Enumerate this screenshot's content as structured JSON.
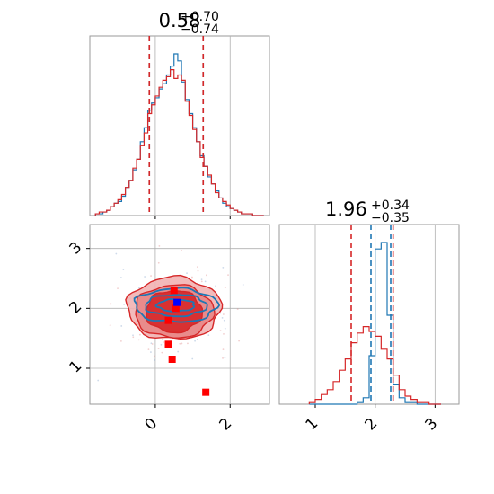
{
  "chart_data": {
    "type": "corner",
    "series": [
      {
        "name": "",
        "color": "#1f77b4"
      },
      {
        "name": "",
        "color": "#d62728"
      }
    ],
    "parameters": [
      {
        "title_value": "0.58",
        "title_plus": "+0.70",
        "title_minus": "−0.74",
        "range": [
          -1.75,
          3.05
        ],
        "quantiles_red": [
          -0.16,
          0.58,
          1.28
        ],
        "quantiles_blue": [
          -0.16,
          0.58,
          1.28
        ],
        "hist_x": [
          -1.55,
          -1.45,
          -1.35,
          -1.25,
          -1.15,
          -1.05,
          -0.95,
          -0.85,
          -0.75,
          -0.65,
          -0.55,
          -0.45,
          -0.35,
          -0.25,
          -0.15,
          -0.05,
          0.05,
          0.15,
          0.25,
          0.35,
          0.45,
          0.55,
          0.65,
          0.75,
          0.85,
          0.95,
          1.05,
          1.15,
          1.25,
          1.35,
          1.45,
          1.55,
          1.65,
          1.75,
          1.85,
          1.95,
          2.05,
          2.15,
          2.25,
          2.35,
          2.45,
          2.55,
          2.65,
          2.75,
          2.85
        ],
        "hist_blue": [
          1,
          1,
          2,
          3,
          5,
          7,
          8,
          11,
          16,
          20,
          26,
          32,
          42,
          50,
          60,
          64,
          67,
          72,
          75,
          80,
          85,
          92,
          88,
          76,
          66,
          58,
          50,
          42,
          34,
          28,
          22,
          18,
          14,
          10,
          7,
          5,
          4,
          3,
          2,
          1,
          1,
          1,
          0,
          0,
          0
        ],
        "hist_red": [
          1,
          2,
          2,
          3,
          5,
          7,
          9,
          12,
          16,
          20,
          27,
          32,
          40,
          47,
          58,
          63,
          68,
          73,
          77,
          79,
          83,
          78,
          80,
          77,
          65,
          57,
          49,
          42,
          33,
          28,
          23,
          18,
          13,
          10,
          8,
          6,
          4,
          3,
          2,
          1,
          1,
          1,
          0,
          0,
          0
        ]
      },
      {
        "title_value": "1.96",
        "title_plus": "+0.34",
        "title_minus": "−0.35",
        "range": [
          0.4,
          3.4
        ],
        "quantiles_red": [
          1.6,
          1.96,
          2.3
        ],
        "quantiles_blue": [
          1.93,
          1.96,
          2.26
        ],
        "hist_x": [
          0.95,
          1.05,
          1.15,
          1.25,
          1.35,
          1.45,
          1.55,
          1.65,
          1.75,
          1.85,
          1.95,
          2.05,
          2.15,
          2.25,
          2.35,
          2.45,
          2.55,
          2.65,
          2.75,
          2.85,
          2.95,
          3.05
        ],
        "hist_blue": [
          0,
          0,
          0,
          0,
          0,
          0,
          0,
          0,
          1,
          4,
          30,
          96,
          100,
          55,
          12,
          4,
          1,
          1,
          0,
          0,
          0,
          0
        ],
        "hist_red": [
          1,
          3,
          6,
          9,
          14,
          21,
          28,
          38,
          44,
          48,
          45,
          42,
          34,
          28,
          18,
          9,
          5,
          3,
          1,
          1,
          0,
          0
        ]
      }
    ],
    "ticks": {
      "param0": [
        "0",
        "2"
      ],
      "param1": [
        "1",
        "2",
        "3"
      ]
    },
    "scatter_2d": {
      "blue_markers": [
        {
          "x": 0.58,
          "y": 2.1
        }
      ],
      "red_markers": [
        {
          "x": 0.5,
          "y": 2.3
        },
        {
          "x": 0.55,
          "y": 2.0
        },
        {
          "x": 0.35,
          "y": 1.8
        },
        {
          "x": 0.35,
          "y": 1.4
        },
        {
          "x": 0.45,
          "y": 1.15
        },
        {
          "x": 1.35,
          "y": 0.6
        }
      ]
    },
    "contours_red": [
      {
        "cx": 0.5,
        "cy": 2.0,
        "rx": 1.25,
        "ry": 0.52,
        "fill": "#f2b2b2",
        "opacity": 0.9
      },
      {
        "cx": 0.5,
        "cy": 1.95,
        "rx": 1.05,
        "ry": 0.44,
        "fill": "#e88686",
        "opacity": 0.9
      },
      {
        "cx": 0.5,
        "cy": 1.95,
        "rx": 0.75,
        "ry": 0.35,
        "fill": "#d62728",
        "opacity": 0.9
      }
    ],
    "contours_blue": [
      {
        "cx": 0.55,
        "cy": 2.05,
        "rx": 1.1,
        "ry": 0.28
      },
      {
        "cx": 0.55,
        "cy": 2.05,
        "rx": 0.82,
        "ry": 0.18
      },
      {
        "cx": 0.55,
        "cy": 2.05,
        "rx": 0.5,
        "ry": 0.1
      }
    ]
  }
}
